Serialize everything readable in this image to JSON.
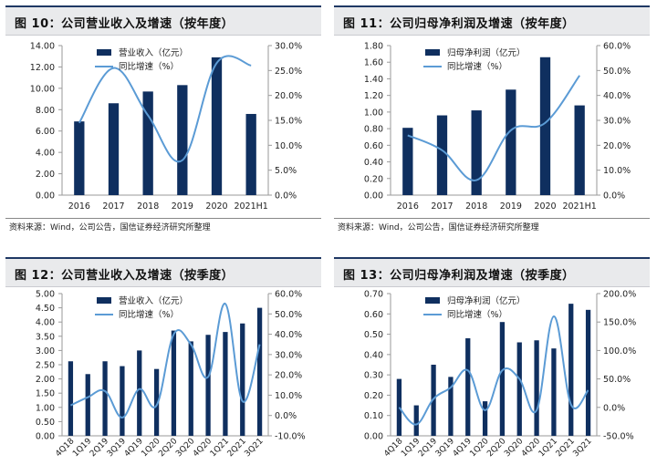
{
  "colors": {
    "bar": "#0f2f5f",
    "line": "#5b9bd5",
    "title_bg": "#e9eaec",
    "title_border": "#1f3864"
  },
  "panels": [
    {
      "title": "图 10：公司营业收入及增速（按年度）",
      "source": "资料来源：Wind，公司公告，国信证券经济研究所整理"
    },
    {
      "title": "图 11：公司归母净利润及增速（按年度）",
      "source": "资料来源：Wind，公司公告，国信证券经济研究所整理"
    },
    {
      "title": "图 12：公司营业收入及增速（按季度）",
      "source": ""
    },
    {
      "title": "图 13：公司归母净利润及增速（按季度）",
      "source": ""
    }
  ],
  "chart_data": [
    {
      "type": "bar+line",
      "categories": [
        "2016",
        "2017",
        "2018",
        "2019",
        "2020",
        "2021H1"
      ],
      "series": [
        {
          "name": "营业收入（亿元）",
          "type": "bar",
          "axis": "left",
          "values": [
            6.9,
            8.6,
            9.7,
            10.3,
            12.9,
            7.6
          ]
        },
        {
          "name": "同比增速（%）",
          "type": "line",
          "axis": "right",
          "values": [
            14.5,
            25.5,
            16.0,
            7.0,
            26.5,
            26.0
          ]
        }
      ],
      "yticks_left": [
        "0.00",
        "2.00",
        "4.00",
        "6.00",
        "8.00",
        "10.00",
        "12.00",
        "14.00"
      ],
      "ylim_left": [
        0,
        14
      ],
      "yticks_right": [
        "0.0%",
        "5.0%",
        "10.0%",
        "15.0%",
        "20.0%",
        "25.0%",
        "30.0%"
      ],
      "ylim_right": [
        0,
        30
      ],
      "legend": "top-left",
      "grid": false,
      "xlabel_rotated": false
    },
    {
      "type": "bar+line",
      "categories": [
        "2016",
        "2017",
        "2018",
        "2019",
        "2020",
        "2021H1"
      ],
      "series": [
        {
          "name": "归母净利润（亿元）",
          "type": "bar",
          "axis": "left",
          "values": [
            0.81,
            0.96,
            1.02,
            1.27,
            1.66,
            1.08
          ]
        },
        {
          "name": "同比增速（%）",
          "type": "line",
          "axis": "right",
          "values": [
            24.0,
            18.0,
            6.0,
            26.0,
            29.0,
            48.0
          ]
        }
      ],
      "yticks_left": [
        "0.00",
        "0.20",
        "0.40",
        "0.60",
        "0.80",
        "1.00",
        "1.20",
        "1.40",
        "1.60",
        "1.80"
      ],
      "ylim_left": [
        0,
        1.8
      ],
      "yticks_right": [
        "0.0%",
        "10.0%",
        "20.0%",
        "30.0%",
        "40.0%",
        "50.0%",
        "60.0%"
      ],
      "ylim_right": [
        0,
        60
      ],
      "legend": "top-left",
      "grid": false,
      "xlabel_rotated": false
    },
    {
      "type": "bar+line",
      "categories": [
        "4Q18",
        "1Q19",
        "2Q19",
        "3Q19",
        "4Q19",
        "1Q20",
        "2Q20",
        "3Q20",
        "4Q20",
        "1Q21",
        "2Q21",
        "3Q21"
      ],
      "series": [
        {
          "name": "营业收入（亿元）",
          "type": "bar",
          "axis": "left",
          "values": [
            2.62,
            2.17,
            2.62,
            2.45,
            3.0,
            2.35,
            3.7,
            3.32,
            3.55,
            3.65,
            3.95,
            4.5
          ]
        },
        {
          "name": "同比增速（%）",
          "type": "line",
          "axis": "right",
          "values": [
            5.0,
            9.0,
            12.0,
            -1.0,
            13.0,
            5.0,
            40.0,
            35.0,
            19.0,
            55.0,
            7.0,
            35.0
          ]
        }
      ],
      "yticks_left": [
        "0.00",
        "0.50",
        "1.00",
        "1.50",
        "2.00",
        "2.50",
        "3.00",
        "3.50",
        "4.00",
        "4.50",
        "5.00"
      ],
      "ylim_left": [
        0,
        5
      ],
      "yticks_right": [
        "-10.0%",
        "0.0%",
        "10.0%",
        "20.0%",
        "30.0%",
        "40.0%",
        "50.0%",
        "60.0%"
      ],
      "ylim_right": [
        -10,
        60
      ],
      "legend": "top-left",
      "grid": false,
      "xlabel_rotated": true
    },
    {
      "type": "bar+line",
      "categories": [
        "4Q18",
        "1Q19",
        "2Q19",
        "3Q19",
        "4Q19",
        "1Q20",
        "2Q20",
        "3Q20",
        "4Q20",
        "1Q21",
        "2Q21",
        "3Q21"
      ],
      "series": [
        {
          "name": "归母净利润（亿元）",
          "type": "bar",
          "axis": "left",
          "values": [
            0.28,
            0.15,
            0.35,
            0.29,
            0.48,
            0.17,
            0.56,
            0.46,
            0.47,
            0.43,
            0.65,
            0.62
          ]
        },
        {
          "name": "同比增速（%）",
          "type": "line",
          "axis": "right",
          "values": [
            0.0,
            -30.0,
            15.0,
            35.0,
            65.0,
            -5.0,
            65.0,
            50.0,
            -5.0,
            160.0,
            5.0,
            30.0
          ]
        }
      ],
      "yticks_left": [
        "0.00",
        "0.10",
        "0.20",
        "0.30",
        "0.40",
        "0.50",
        "0.60",
        "0.70"
      ],
      "ylim_left": [
        0,
        0.7
      ],
      "yticks_right": [
        "-50.0%",
        "0.0%",
        "50.0%",
        "100.0%",
        "150.0%",
        "200.0%"
      ],
      "ylim_right": [
        -50,
        200
      ],
      "legend": "top-left",
      "grid": false,
      "xlabel_rotated": true
    }
  ]
}
